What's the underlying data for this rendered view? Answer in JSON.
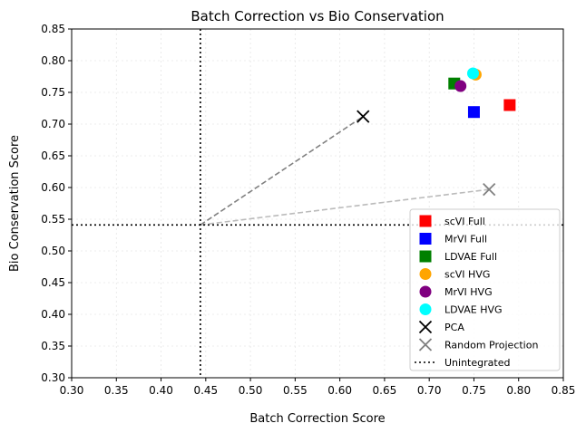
{
  "chart_data": {
    "type": "scatter",
    "title": "Batch Correction vs Bio Conservation",
    "xlabel": "Batch Correction Score",
    "ylabel": "Bio Conservation Score",
    "xlim": [
      0.3,
      0.85
    ],
    "ylim": [
      0.3,
      0.85
    ],
    "xticks": [
      "0.30",
      "0.35",
      "0.40",
      "0.45",
      "0.50",
      "0.55",
      "0.60",
      "0.65",
      "0.70",
      "0.75",
      "0.80",
      "0.85"
    ],
    "yticks": [
      "0.30",
      "0.35",
      "0.40",
      "0.45",
      "0.50",
      "0.55",
      "0.60",
      "0.65",
      "0.70",
      "0.75",
      "0.80",
      "0.85"
    ],
    "grid": true,
    "legend_position": "lower-right",
    "series": [
      {
        "name": "scVI Full",
        "marker": "square",
        "color": "#ff0000",
        "x": 0.79,
        "y": 0.73
      },
      {
        "name": "MrVI Full",
        "marker": "square",
        "color": "#0000ff",
        "x": 0.75,
        "y": 0.719
      },
      {
        "name": "LDVAE Full",
        "marker": "square",
        "color": "#008000",
        "x": 0.728,
        "y": 0.764
      },
      {
        "name": "scVI HVG",
        "marker": "circle",
        "color": "#ffa500",
        "x": 0.752,
        "y": 0.778
      },
      {
        "name": "MrVI HVG",
        "marker": "circle",
        "color": "#800080",
        "x": 0.735,
        "y": 0.76
      },
      {
        "name": "LDVAE HVG",
        "marker": "circle",
        "color": "#00ffff",
        "x": 0.749,
        "y": 0.78
      },
      {
        "name": "PCA",
        "marker": "x",
        "color": "#000000",
        "x": 0.626,
        "y": 0.712
      },
      {
        "name": "Random Projection",
        "marker": "x",
        "color": "#808080",
        "x": 0.767,
        "y": 0.597
      }
    ],
    "unintegrated": {
      "name": "Unintegrated",
      "x": 0.444,
      "y": 0.541,
      "color": "#000000"
    },
    "connectors": [
      {
        "from": "Unintegrated",
        "to": "PCA",
        "color": "#808080"
      },
      {
        "from": "Unintegrated",
        "to": "Random Projection",
        "color": "#bbbbbb"
      }
    ]
  }
}
